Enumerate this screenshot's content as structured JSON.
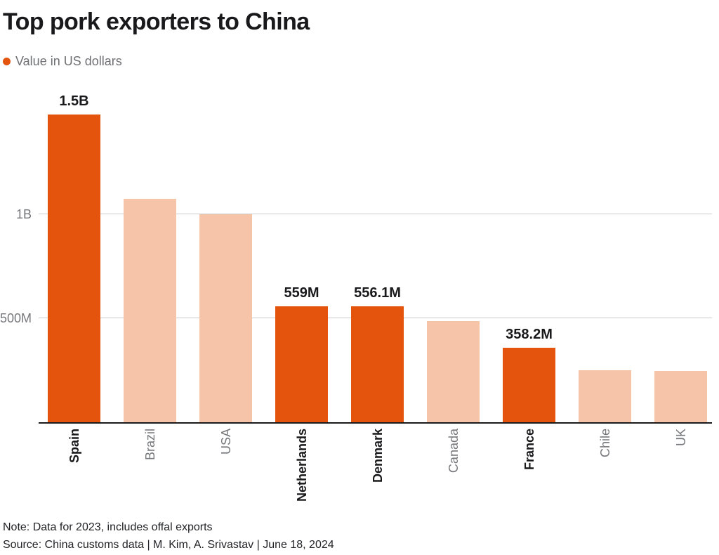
{
  "header": {
    "title": "Top pork exporters to China",
    "legend_label": "Value in US dollars",
    "accent_color": "#e4540d"
  },
  "chart_data": {
    "type": "bar",
    "title": "Top pork exporters to China",
    "legend": [
      {
        "label": "Value in US dollars",
        "color": "#e4540d",
        "position": "top-left"
      }
    ],
    "unit": "US dollars",
    "xlabel": "",
    "ylabel": "Value in US dollars",
    "ylim_musd": [
      0,
      1591
    ],
    "grid": "horizontal",
    "yticks": [
      {
        "value_musd": 500,
        "label": "500M"
      },
      {
        "value_musd": 1000,
        "label": "1B"
      }
    ],
    "categories": [
      "Spain",
      "Brazil",
      "USA",
      "Netherlands",
      "Denmark",
      "Canada",
      "France",
      "Chile",
      "UK"
    ],
    "bars": [
      {
        "category": "Spain",
        "value_musd": 1480,
        "label": "1.5B",
        "highlight": true
      },
      {
        "category": "Brazil",
        "value_musd": 1074,
        "label": "",
        "highlight": false
      },
      {
        "category": "USA",
        "value_musd": 1000,
        "label": "",
        "highlight": false
      },
      {
        "category": "Netherlands",
        "value_musd": 559,
        "label": "559M",
        "highlight": true
      },
      {
        "category": "Denmark",
        "value_musd": 556.1,
        "label": "556.1M",
        "highlight": true
      },
      {
        "category": "Canada",
        "value_musd": 485,
        "label": "",
        "highlight": false
      },
      {
        "category": "France",
        "value_musd": 358.2,
        "label": "358.2M",
        "highlight": true
      },
      {
        "category": "Chile",
        "value_musd": 250,
        "label": "",
        "highlight": false
      },
      {
        "category": "UK",
        "value_musd": 245,
        "label": "",
        "highlight": false
      }
    ],
    "colors": {
      "highlight": "#e4540d",
      "muted": "#f6c5a9",
      "gridline": "#cccccc",
      "axis": "#1a1a1a"
    }
  },
  "footer": {
    "note": "Note: Data for 2023, includes offal exports",
    "source": "Source: China customs data | M. Kim, A. Srivastav | June 18, 2024"
  }
}
